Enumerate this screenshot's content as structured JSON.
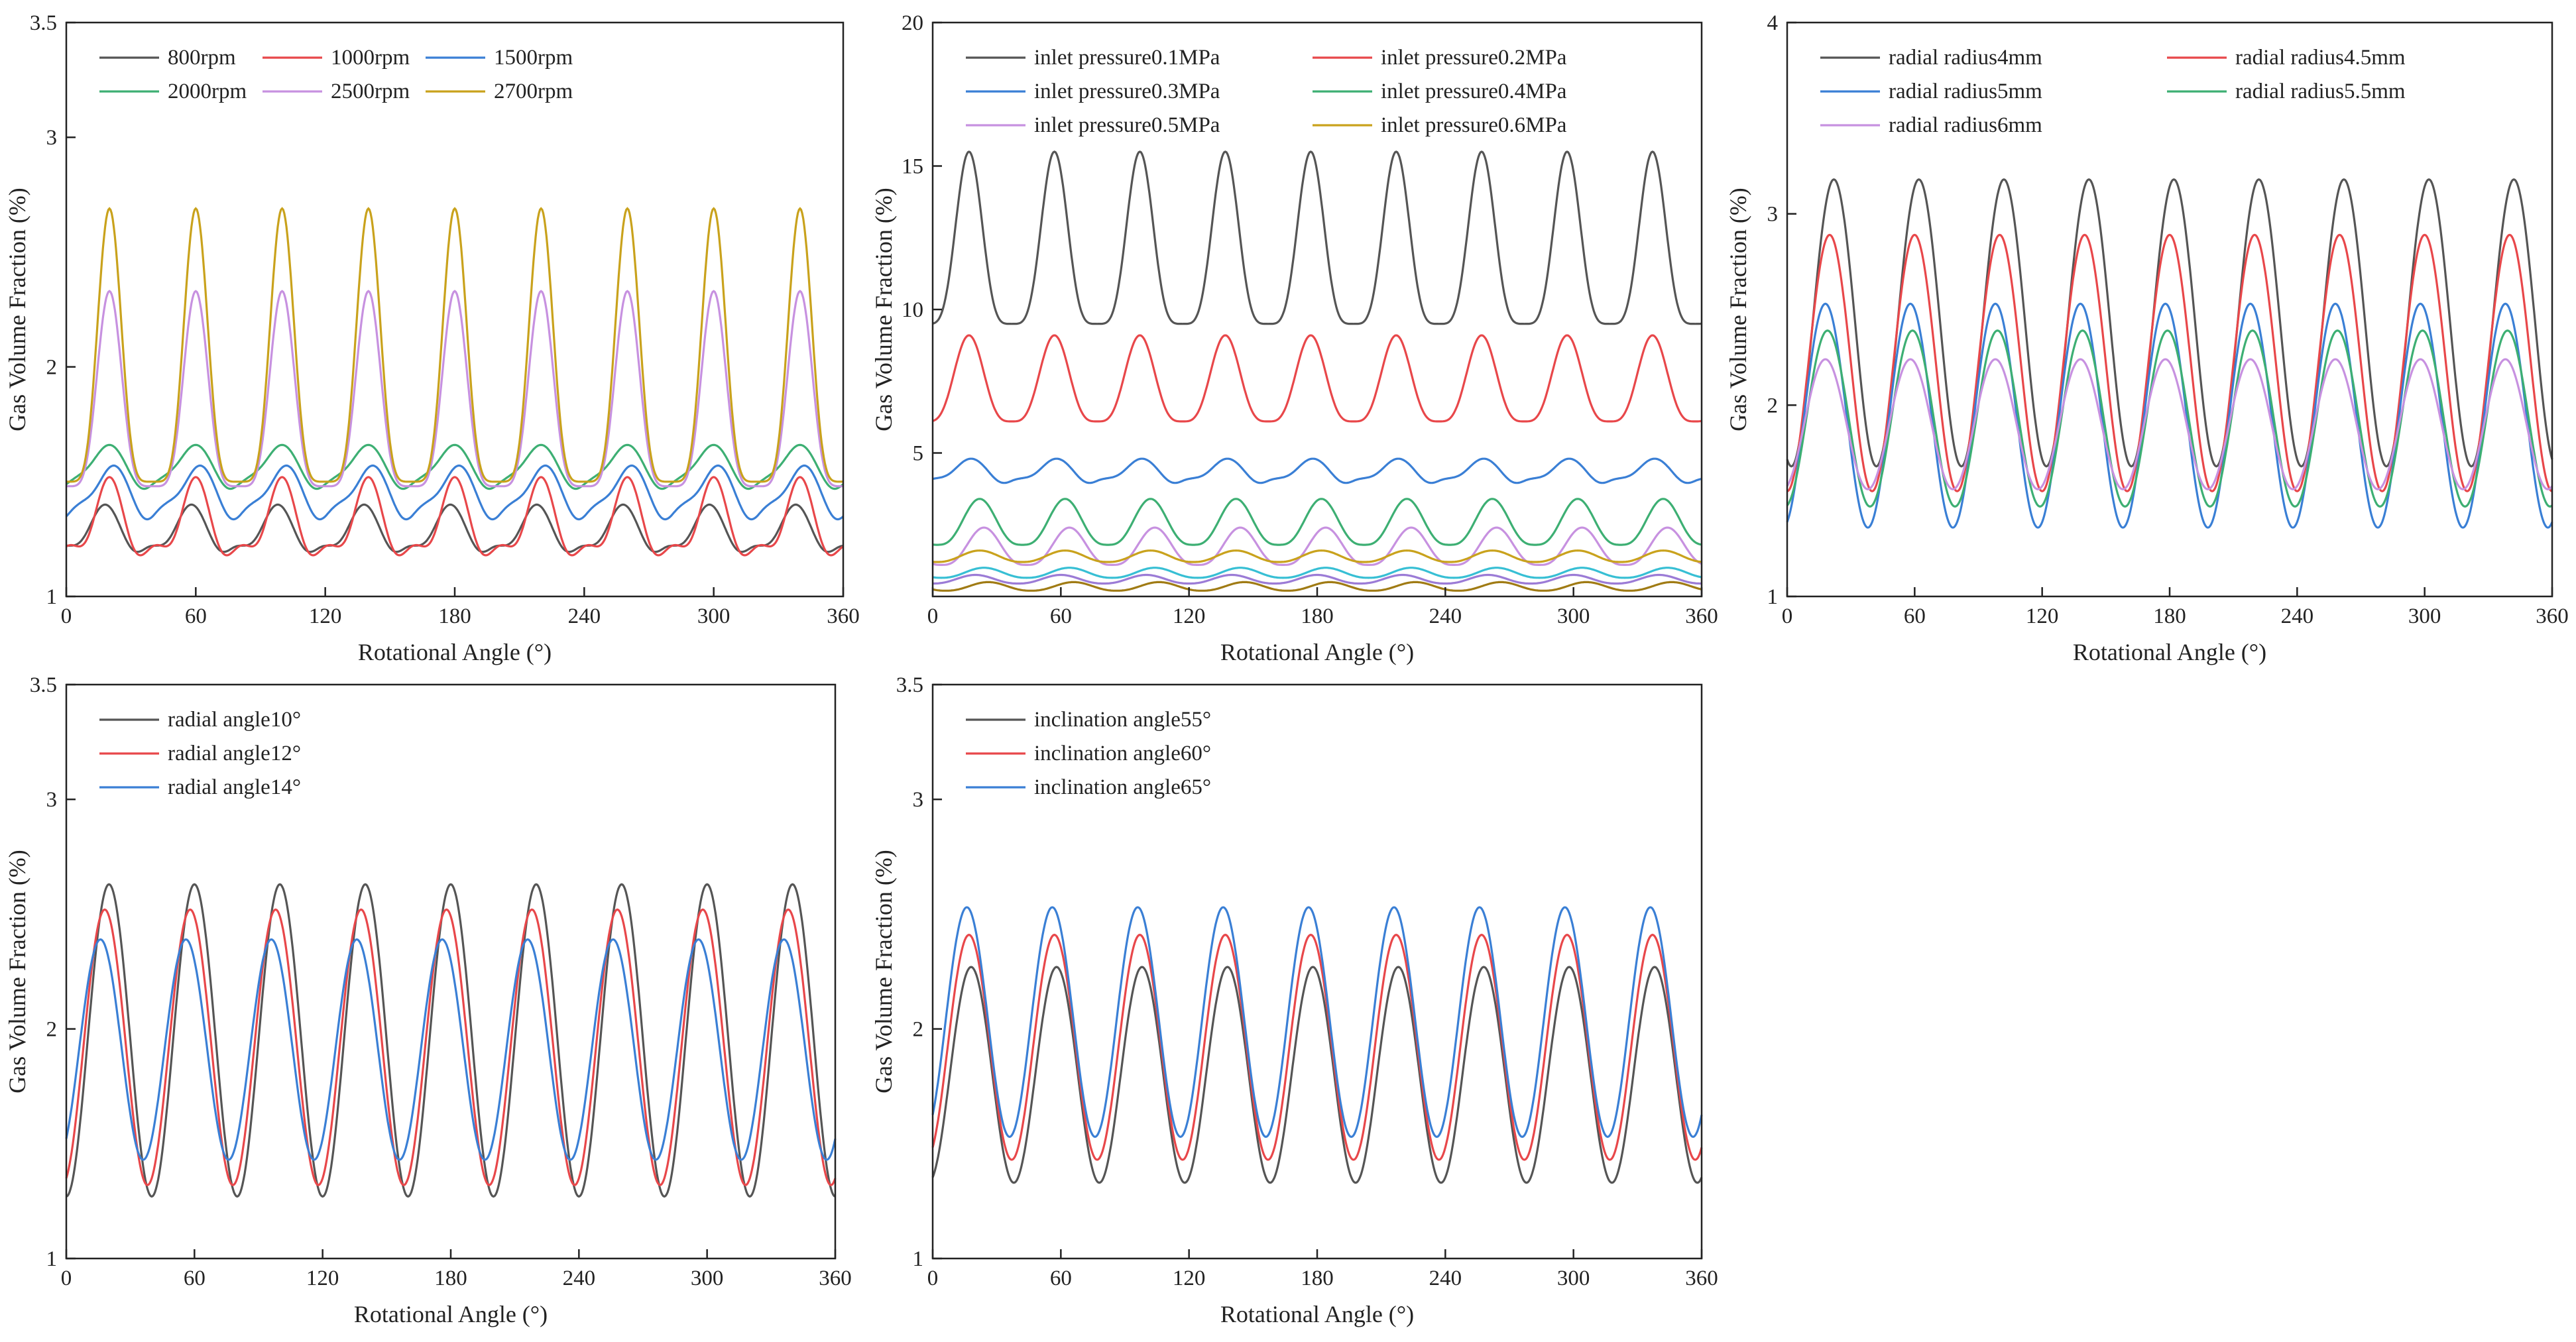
{
  "colors": {
    "axis": "#222222",
    "black": "#555555",
    "red": "#e8474a",
    "blue": "#3a7fd5",
    "green": "#3daf73",
    "violet": "#c791e0",
    "gold": "#c9a21c",
    "cyan": "#37bfd4",
    "darkgold": "#a07b14",
    "purple": "#9b7bd6"
  },
  "chart_data": [
    {
      "type": "line",
      "xlabel": "Rotational Angle (°)",
      "ylabel": "Gas Volume Fraction (%)",
      "xlim": [
        0,
        360
      ],
      "ylim": [
        1,
        3.5
      ],
      "xticks": [
        0,
        60,
        120,
        180,
        240,
        300,
        360
      ],
      "yticks": [
        1,
        2,
        3,
        3.5
      ],
      "ytick_labels": [
        "1",
        "2",
        "3",
        "3.5"
      ],
      "legend_cols": 3,
      "series": [
        {
          "name": "800rpm",
          "color": "black",
          "base": 1.16,
          "amp": 0.24,
          "phase": 18,
          "sharp": 1.6,
          "second": 0.25,
          "phase2": 40
        },
        {
          "name": "1000rpm",
          "color": "red",
          "base": 1.14,
          "amp": 0.38,
          "phase": 20,
          "sharp": 2.0,
          "second": 0.22,
          "phase2": 42
        },
        {
          "name": "1500rpm",
          "color": "blue",
          "base": 1.3,
          "amp": 0.27,
          "phase": 22,
          "sharp": 1.4,
          "second": 0.35,
          "phase2": 46
        },
        {
          "name": "2000rpm",
          "color": "green",
          "base": 1.44,
          "amp": 0.22,
          "phase": 20,
          "sharp": 1.3,
          "second": 0.3,
          "phase2": 44
        },
        {
          "name": "2500rpm",
          "color": "violet",
          "base": 1.48,
          "amp": 0.85,
          "phase": 20,
          "sharp": 2.6,
          "second": 0,
          "phase2": 0
        },
        {
          "name": "2700rpm",
          "color": "gold",
          "base": 1.5,
          "amp": 1.19,
          "phase": 20,
          "sharp": 2.8,
          "second": 0,
          "phase2": 0
        }
      ]
    },
    {
      "type": "line",
      "xlabel": "Rotational Angle (°)",
      "ylabel": "Gas Volume Fraction (%)",
      "xlim": [
        0,
        360
      ],
      "ylim": [
        0,
        20
      ],
      "xticks": [
        0,
        60,
        120,
        180,
        240,
        300,
        360
      ],
      "yticks": [
        5,
        10,
        15,
        20
      ],
      "ytick_labels": [
        "5",
        "10",
        "15",
        "20"
      ],
      "legend_cols": 2,
      "series": [
        {
          "name": "inlet pressure0.1MPa",
          "color": "black",
          "base": 9.5,
          "amp": 6.0,
          "phase": 17,
          "sharp": 2.2,
          "second": 0,
          "phase2": 0
        },
        {
          "name": "inlet pressure0.2MPa",
          "color": "red",
          "base": 6.1,
          "amp": 3.0,
          "phase": 17,
          "sharp": 1.8,
          "second": 0,
          "phase2": 0
        },
        {
          "name": "inlet pressure0.3MPa",
          "color": "blue",
          "base": 3.7,
          "amp": 1.1,
          "phase": 18,
          "sharp": 1.2,
          "second": 0.35,
          "phase2": 40
        },
        {
          "name": "inlet pressure0.4MPa",
          "color": "green",
          "base": 1.8,
          "amp": 1.6,
          "phase": 22,
          "sharp": 1.5,
          "second": 0,
          "phase2": 0
        },
        {
          "name": "inlet pressure0.5MPa",
          "color": "violet",
          "base": 1.1,
          "amp": 1.3,
          "phase": 24,
          "sharp": 1.5,
          "second": 0,
          "phase2": 0
        },
        {
          "name": "inlet pressure0.6MPa",
          "color": "gold",
          "base": 1.2,
          "amp": 0.4,
          "phase": 22,
          "sharp": 1.2,
          "second": 0,
          "phase2": 0
        },
        {
          "name": "",
          "color": "cyan",
          "base": 0.65,
          "amp": 0.35,
          "phase": 24,
          "sharp": 1.2,
          "second": 0,
          "phase2": 0
        },
        {
          "name": "",
          "color": "darkgold",
          "base": 0.2,
          "amp": 0.3,
          "phase": 26,
          "sharp": 1.2,
          "second": 0,
          "phase2": 0
        },
        {
          "name": "",
          "color": "purple",
          "base": 0.45,
          "amp": 0.3,
          "phase": 20,
          "sharp": 1.2,
          "second": 0,
          "phase2": 0
        }
      ]
    },
    {
      "type": "line",
      "xlabel": "Rotational Angle (°)",
      "ylabel": "Gas Volume Fraction (%)",
      "xlim": [
        0,
        360
      ],
      "ylim": [
        1,
        4
      ],
      "xticks": [
        0,
        60,
        120,
        180,
        240,
        300,
        360
      ],
      "yticks": [
        1,
        2,
        3,
        4
      ],
      "ytick_labels": [
        "1",
        "2",
        "3",
        "4"
      ],
      "legend_cols": 2,
      "series": [
        {
          "name": "radial radius4mm",
          "color": "black",
          "base": 1.68,
          "amp": 1.5,
          "phase": 22,
          "sharp": 1.0,
          "second": 0,
          "phase2": 0
        },
        {
          "name": "radial radius4.5mm",
          "color": "red",
          "base": 1.55,
          "amp": 1.34,
          "phase": 20,
          "sharp": 1.0,
          "second": 0,
          "phase2": 0
        },
        {
          "name": "radial radius5mm",
          "color": "blue",
          "base": 1.36,
          "amp": 1.17,
          "phase": 18,
          "sharp": 1.0,
          "second": 0,
          "phase2": 0
        },
        {
          "name": "radial radius5.5mm",
          "color": "green",
          "base": 1.47,
          "amp": 0.92,
          "phase": 19,
          "sharp": 1.0,
          "second": 0,
          "phase2": 0
        },
        {
          "name": "radial radius6mm",
          "color": "violet",
          "base": 1.56,
          "amp": 0.68,
          "phase": 18,
          "sharp": 1.0,
          "second": 0,
          "phase2": 0
        }
      ]
    },
    {
      "type": "line",
      "xlabel": "Rotational Angle (°)",
      "ylabel": "Gas Volume Fraction (%)",
      "xlim": [
        0,
        360
      ],
      "ylim": [
        1,
        3.5
      ],
      "xticks": [
        0,
        60,
        120,
        180,
        240,
        300,
        360
      ],
      "yticks": [
        1,
        2,
        3,
        3.5
      ],
      "ytick_labels": [
        "1",
        "2",
        "3",
        "3.5"
      ],
      "legend_cols": 1,
      "series": [
        {
          "name": "radial angle10°",
          "color": "black",
          "base": 1.27,
          "amp": 1.36,
          "phase": 20,
          "sharp": 1.0,
          "second": 0,
          "phase2": 0
        },
        {
          "name": "radial angle12°",
          "color": "red",
          "base": 1.32,
          "amp": 1.2,
          "phase": 18,
          "sharp": 1.0,
          "second": 0,
          "phase2": 0
        },
        {
          "name": "radial angle14°",
          "color": "blue",
          "base": 1.43,
          "amp": 0.96,
          "phase": 16,
          "sharp": 1.0,
          "second": 0,
          "phase2": 0
        }
      ]
    },
    {
      "type": "line",
      "xlabel": "Rotational Angle (°)",
      "ylabel": "Gas Volume Fraction (%)",
      "xlim": [
        0,
        360
      ],
      "ylim": [
        1,
        3.5
      ],
      "xticks": [
        0,
        60,
        120,
        180,
        240,
        300,
        360
      ],
      "yticks": [
        1,
        2,
        3,
        3.5
      ],
      "ytick_labels": [
        "1",
        "2",
        "3",
        "3.5"
      ],
      "legend_cols": 1,
      "series": [
        {
          "name": "inclination angle55°",
          "color": "black",
          "base": 1.33,
          "amp": 0.94,
          "phase": 18,
          "sharp": 1.0,
          "second": 0,
          "phase2": 0
        },
        {
          "name": "inclination angle60°",
          "color": "red",
          "base": 1.43,
          "amp": 0.98,
          "phase": 17,
          "sharp": 1.0,
          "second": 0,
          "phase2": 0
        },
        {
          "name": "inclination angle65°",
          "color": "blue",
          "base": 1.53,
          "amp": 1.0,
          "phase": 16,
          "sharp": 1.0,
          "second": 0,
          "phase2": 0
        }
      ]
    }
  ]
}
